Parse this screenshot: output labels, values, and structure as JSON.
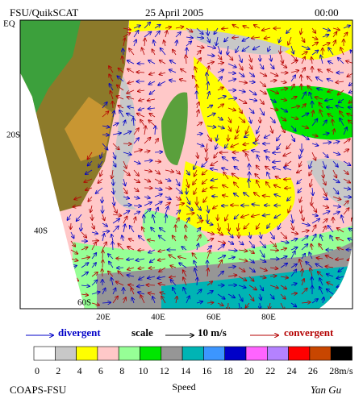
{
  "header": {
    "left": "FSU/QuikSCAT",
    "date": "25 April 2005",
    "time": "00:00"
  },
  "lat_labels": [
    "EQ",
    "20S",
    "40S",
    "60S"
  ],
  "lon_labels": [
    "20E",
    "40E",
    "60E",
    "80E"
  ],
  "legend": {
    "divergent": "divergent",
    "scale": "scale",
    "scale_value": "10 m/s",
    "convergent": "convergent"
  },
  "colorbar": {
    "colors": [
      "#ffffff",
      "#c8c8c8",
      "#ffff00",
      "#ffc8c8",
      "#96ff96",
      "#00e600",
      "#969696",
      "#00b4b4",
      "#3c96ff",
      "#0000c8",
      "#ff64ff",
      "#b482ff",
      "#ff0000",
      "#c84600",
      "#000000"
    ],
    "labels": [
      0,
      2,
      4,
      6,
      8,
      10,
      12,
      14,
      16,
      18,
      20,
      22,
      24,
      26,
      28
    ],
    "unit": "m/s",
    "title": "Speed"
  },
  "footer": {
    "left": "COAPS-FSU",
    "right": "Yan Gu"
  }
}
